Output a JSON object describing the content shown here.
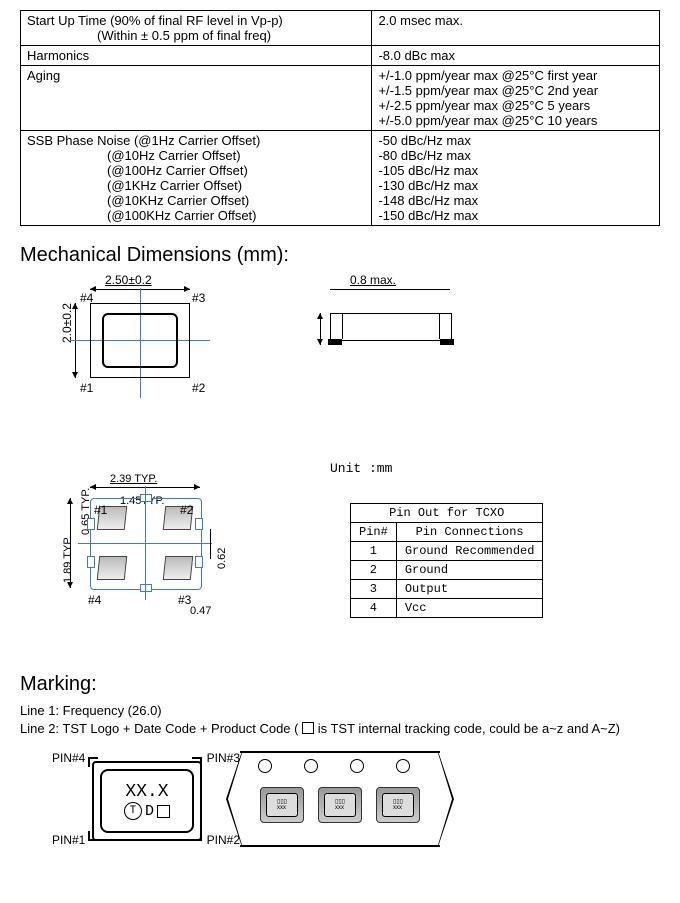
{
  "spec_table": {
    "rows": [
      {
        "label_html": "Start Up Time (90% of final RF level in Vp-p)<br><span style='padding-left:70px'>(Within ± 0.5 ppm of final freq)</span>",
        "value": "2.0 msec max."
      },
      {
        "label_html": "Harmonics",
        "value": "-8.0 dBc max"
      },
      {
        "label_html": "Aging",
        "value_html": "+/-1.0 ppm/year max @25°C first year<br>+/-1.5 ppm/year max @25°C 2nd year<br>+/-2.5 ppm/year max @25°C 5 years<br>+/-5.0 ppm/year max @25°C 10 years"
      },
      {
        "label_html": "SSB Phase Noise (@1Hz Carrier Offset)<br><span class='spec-sub'>(@10Hz Carrier Offset)</span><span class='spec-sub'>(@100Hz Carrier Offset)</span><span class='spec-sub'>(@1KHz Carrier Offset)</span><span class='spec-sub'>(@10KHz Carrier Offset)</span><span class='spec-sub'>(@100KHz Carrier Offset)</span>",
        "value_html": "-50 dBc/Hz max<br>-80 dBc/Hz max<br>-105 dBc/Hz max<br>-130 dBc/Hz max<br>-148 dBc/Hz max<br>-150 dBc/Hz max"
      }
    ]
  },
  "sections": {
    "mech": "Mechanical Dimensions (mm):",
    "mark": "Marking:"
  },
  "dims": {
    "width": "2.50±0.2",
    "height": "2.0±0.2",
    "thick": "0.8 max.",
    "unit": "Unit :mm",
    "fp_w": "2.39 TYP.",
    "fp_pad_w": "1.45TYP.",
    "fp_h": "1.89 TYP.",
    "fp_pad_h": "0.65 TYP.",
    "fp_062": "0.62",
    "fp_047": "0.47"
  },
  "pins": {
    "p1": "#1",
    "p2": "#2",
    "p3": "#3",
    "p4": "#4"
  },
  "pinout": {
    "title": "Pin Out for TCXO",
    "col1": "Pin#",
    "col2": "Pin Connections",
    "rows": [
      {
        "n": "1",
        "d": "Ground Recommended"
      },
      {
        "n": "2",
        "d": "Ground"
      },
      {
        "n": "3",
        "d": "Output"
      },
      {
        "n": "4",
        "d": "Vcc"
      }
    ]
  },
  "marking": {
    "line1": "Line 1: Frequency (26.0)",
    "line2_pre": "Line 2: TST Logo + Date Code + Product Code ( ",
    "line2_post": " is TST internal tracking code, could be a~z and A~Z)",
    "chip_l1": "XX.X",
    "chip_l2_d": "D",
    "pin1": "PIN#1",
    "pin2": "PIN#2",
    "pin3": "PIN#3",
    "pin4": "PIN#4"
  }
}
